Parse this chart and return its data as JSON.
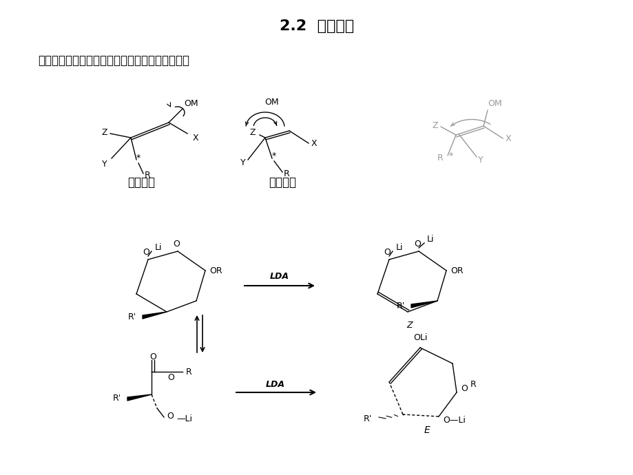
{
  "title": "2.2  手性传递",
  "subtitle": "手性烯醒：环内烯醒、环外烯醒和配位型环内烯醒",
  "label_inner": "环内烯醒",
  "label_outer": "环外烯醒",
  "label_Z": "Z",
  "label_E": "E",
  "label_LDA": "LDA",
  "bg_color": "#ffffff"
}
